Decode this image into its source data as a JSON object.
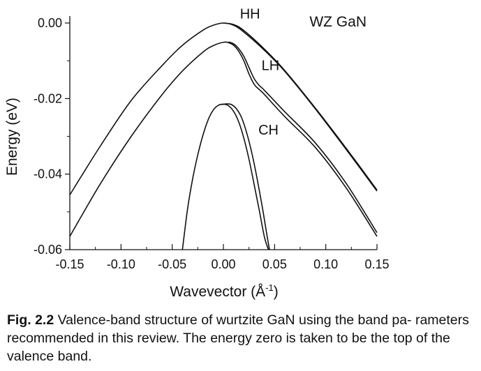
{
  "chart_data": {
    "type": "line",
    "annotation": "WZ GaN",
    "xlabel": "Wavevector (Å",
    "xlabel_sup": "-1",
    "xlabel_end": ")",
    "ylabel": "Energy (eV)",
    "xlim": [
      -0.15,
      0.15
    ],
    "ylim": [
      -0.06,
      0.0
    ],
    "xticks": [
      "-0.15",
      "-0.10",
      "-0.05",
      "0.00",
      "0.05",
      "0.10",
      "0.15"
    ],
    "xtick_values": [
      -0.15,
      -0.1,
      -0.05,
      0.0,
      0.05,
      0.1,
      0.15
    ],
    "yticks": [
      "0.00",
      "-0.02",
      "-0.04",
      "-0.06"
    ],
    "ytick_values": [
      0.0,
      -0.02,
      -0.04,
      -0.06
    ],
    "band_labels": [
      {
        "text": "HH",
        "x": 0.026,
        "y": 0.0012
      },
      {
        "text": "LH",
        "x": 0.046,
        "y": -0.0125
      },
      {
        "text": "CH",
        "x": 0.044,
        "y": -0.0295
      }
    ],
    "series": [
      {
        "x": [
          -0.15,
          -0.12,
          -0.09,
          -0.06,
          -0.04,
          -0.02,
          -0.01,
          0.0,
          0.01,
          0.02,
          0.04,
          0.06,
          0.09,
          0.12,
          0.15
        ],
        "y": [
          -0.0455,
          -0.0325,
          -0.0205,
          -0.0113,
          -0.0059,
          -0.0019,
          -0.0006,
          0.0,
          -0.0006,
          -0.0024,
          -0.0072,
          -0.0128,
          -0.0228,
          -0.0335,
          -0.0445
        ]
      },
      {
        "x": [
          0.0,
          0.01,
          0.02,
          0.04,
          0.06,
          0.09,
          0.12,
          0.15
        ],
        "y": [
          0.0,
          -0.0004,
          -0.002,
          -0.0069,
          -0.0126,
          -0.0226,
          -0.0332,
          -0.0442
        ]
      },
      {
        "x": [
          -0.15,
          -0.12,
          -0.09,
          -0.06,
          -0.04,
          -0.02,
          -0.01,
          0.0,
          0.005,
          0.01,
          0.015,
          0.02,
          0.025,
          0.03,
          0.035,
          0.04,
          0.06,
          0.09,
          0.12,
          0.15
        ],
        "y": [
          -0.0565,
          -0.0425,
          -0.03,
          -0.019,
          -0.0127,
          -0.0077,
          -0.006,
          -0.0051,
          -0.0052,
          -0.0059,
          -0.0075,
          -0.01,
          -0.0135,
          -0.0162,
          -0.0176,
          -0.0189,
          -0.0248,
          -0.033,
          -0.0437,
          -0.0565
        ]
      },
      {
        "x": [
          0.005,
          0.01,
          0.015,
          0.02,
          0.025,
          0.03,
          0.035,
          0.04,
          0.06,
          0.09,
          0.12,
          0.15
        ],
        "y": [
          -0.005,
          -0.0055,
          -0.0068,
          -0.0088,
          -0.0118,
          -0.0147,
          -0.0165,
          -0.0178,
          -0.0235,
          -0.0318,
          -0.0425,
          -0.0555
        ]
      },
      {
        "x": [
          -0.04,
          -0.035,
          -0.03,
          -0.025,
          -0.02,
          -0.015,
          -0.01,
          -0.005,
          0.0,
          0.005,
          0.01,
          0.015,
          0.02,
          0.025,
          0.03,
          0.035,
          0.04,
          0.044
        ],
        "y": [
          -0.06,
          -0.0492,
          -0.0412,
          -0.0349,
          -0.0297,
          -0.0257,
          -0.0231,
          -0.0218,
          -0.0215,
          -0.0219,
          -0.0234,
          -0.0262,
          -0.0305,
          -0.0361,
          -0.0427,
          -0.0495,
          -0.0566,
          -0.06
        ]
      },
      {
        "x": [
          -0.002,
          0.003,
          0.008,
          0.013,
          0.018,
          0.023,
          0.028,
          0.033,
          0.038,
          0.042,
          0.045
        ],
        "y": [
          -0.0216,
          -0.0214,
          -0.0216,
          -0.0228,
          -0.0252,
          -0.0293,
          -0.0347,
          -0.0413,
          -0.0487,
          -0.0553,
          -0.06
        ]
      }
    ]
  },
  "caption": {
    "label": "Fig. 2.2",
    "text": "Valence-band structure of wurtzite GaN using the band pa- rameters recommended in this review. The energy zero is taken to be the top of the valence band."
  }
}
